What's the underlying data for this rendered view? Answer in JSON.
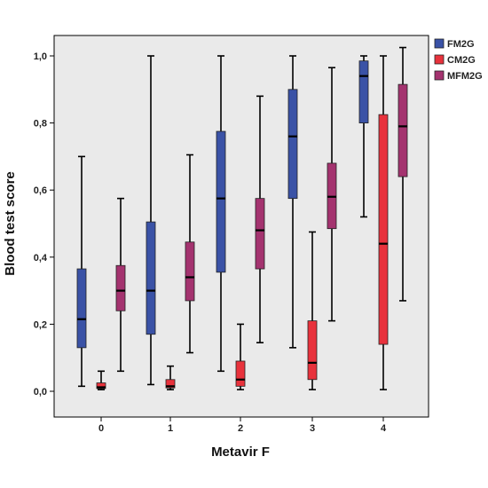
{
  "chart_data": {
    "type": "box",
    "xlabel": "Metavir F",
    "ylabel": "Blood test score",
    "ylim": [
      -0.03,
      1.05
    ],
    "y_ticks": [
      0.0,
      0.2,
      0.4,
      0.6,
      0.8,
      1.0
    ],
    "y_tick_labels": [
      "0,0",
      "0,2",
      "0,4",
      "0,6",
      "0,8",
      "1,0"
    ],
    "categories": [
      "0",
      "1",
      "2",
      "3",
      "4"
    ],
    "legend_position": "top-right",
    "background": "#eaeaea",
    "series": [
      {
        "name": "FM2G",
        "color": "#3a52a6",
        "boxes": [
          {
            "min": 0.015,
            "q1": 0.13,
            "median": 0.215,
            "q3": 0.365,
            "max": 0.7
          },
          {
            "min": 0.02,
            "q1": 0.17,
            "median": 0.3,
            "q3": 0.505,
            "max": 1.0
          },
          {
            "min": 0.06,
            "q1": 0.355,
            "median": 0.575,
            "q3": 0.775,
            "max": 1.0
          },
          {
            "min": 0.13,
            "q1": 0.575,
            "median": 0.76,
            "q3": 0.9,
            "max": 1.0
          },
          {
            "min": 0.52,
            "q1": 0.8,
            "median": 0.94,
            "q3": 0.985,
            "max": 1.0
          }
        ]
      },
      {
        "name": "CM2G",
        "color": "#e8323c",
        "boxes": [
          {
            "min": 0.005,
            "q1": 0.008,
            "median": 0.012,
            "q3": 0.025,
            "max": 0.06
          },
          {
            "min": 0.005,
            "q1": 0.01,
            "median": 0.015,
            "q3": 0.035,
            "max": 0.075
          },
          {
            "min": 0.005,
            "q1": 0.015,
            "median": 0.035,
            "q3": 0.09,
            "max": 0.2
          },
          {
            "min": 0.005,
            "q1": 0.035,
            "median": 0.085,
            "q3": 0.21,
            "max": 0.475
          },
          {
            "min": 0.005,
            "q1": 0.14,
            "median": 0.44,
            "q3": 0.825,
            "max": 1.0
          }
        ]
      },
      {
        "name": "MFM2G",
        "color": "#a4336f",
        "boxes": [
          {
            "min": 0.06,
            "q1": 0.24,
            "median": 0.3,
            "q3": 0.375,
            "max": 0.575
          },
          {
            "min": 0.115,
            "q1": 0.27,
            "median": 0.34,
            "q3": 0.445,
            "max": 0.705
          },
          {
            "min": 0.145,
            "q1": 0.365,
            "median": 0.48,
            "q3": 0.575,
            "max": 0.88
          },
          {
            "min": 0.21,
            "q1": 0.485,
            "median": 0.58,
            "q3": 0.68,
            "max": 0.965
          },
          {
            "min": 0.27,
            "q1": 0.64,
            "median": 0.79,
            "q3": 0.915,
            "max": 1.025
          }
        ]
      }
    ]
  }
}
